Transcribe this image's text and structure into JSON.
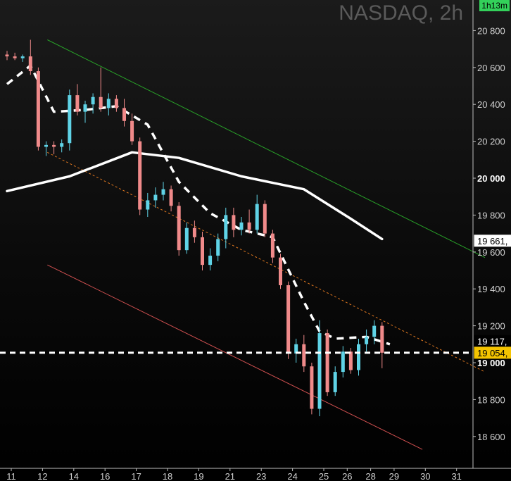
{
  "window": {
    "title": "NASDAQ, 2h",
    "timer": "1h13m"
  },
  "chart_data": {
    "type": "candlestick",
    "title": "NASDAQ, 2h",
    "ylim": [
      18500,
      20900
    ],
    "y_ticks": [
      {
        "value": 20800,
        "label": "20 800",
        "bold": false
      },
      {
        "value": 20600,
        "label": "20 600",
        "bold": false
      },
      {
        "value": 20400,
        "label": "20 400",
        "bold": false
      },
      {
        "value": 20200,
        "label": "20 200",
        "bold": false
      },
      {
        "value": 20000,
        "label": "20 000",
        "bold": true
      },
      {
        "value": 19800,
        "label": "19 800",
        "bold": false
      },
      {
        "value": 19600,
        "label": "19 600",
        "bold": false
      },
      {
        "value": 19400,
        "label": "19 400",
        "bold": false
      },
      {
        "value": 19200,
        "label": "19 200",
        "bold": false
      },
      {
        "value": 19000,
        "label": "19 000",
        "bold": true
      },
      {
        "value": 18800,
        "label": "18 800",
        "bold": false
      },
      {
        "value": 18600,
        "label": "18 600",
        "bold": false
      }
    ],
    "x_ticks": [
      "11",
      "12",
      "14",
      "16",
      "17",
      "18",
      "19",
      "21",
      "23",
      "24",
      "25",
      "26",
      "28",
      "29",
      "30",
      "31"
    ],
    "x_tick_index": [
      0,
      4,
      8,
      12,
      16,
      20,
      24,
      28,
      32,
      36,
      40,
      43,
      46,
      49,
      53,
      57
    ],
    "price_labels": [
      {
        "value": 19661,
        "label": "19 661,",
        "color": "#ffffff",
        "text_color": "#000000"
      },
      {
        "value": 19117,
        "label": "19 117,",
        "color": "#000000",
        "text_color": "#ffffff"
      },
      {
        "value": 19054,
        "label": "19 054,",
        "color": "#f5c400",
        "text_color": "#000000"
      }
    ],
    "horizontal_line": 19054,
    "series": [
      {
        "kind": "ohlc",
        "up_color": "#5fd3e6",
        "down_color": "#f08a8a",
        "bars": [
          [
            20670,
            20690,
            20640,
            20660
          ],
          [
            20660,
            20680,
            20640,
            20650
          ],
          [
            20650,
            20670,
            20630,
            20660
          ],
          [
            20660,
            20750,
            20560,
            20580
          ],
          [
            20580,
            20600,
            20150,
            20170
          ],
          [
            20170,
            20200,
            20120,
            20180
          ],
          [
            20180,
            20200,
            20130,
            20170
          ],
          [
            20170,
            20210,
            20140,
            20190
          ],
          [
            20190,
            20480,
            20150,
            20450
          ],
          [
            20450,
            20510,
            20340,
            20360
          ],
          [
            20360,
            20420,
            20300,
            20400
          ],
          [
            20400,
            20460,
            20350,
            20440
          ],
          [
            20440,
            20600,
            20360,
            20380
          ],
          [
            20380,
            20460,
            20340,
            20430
          ],
          [
            20430,
            20450,
            20360,
            20380
          ],
          [
            20380,
            20430,
            20280,
            20310
          ],
          [
            20310,
            20350,
            20180,
            20200
          ],
          [
            20200,
            20220,
            19800,
            19830
          ],
          [
            19830,
            19920,
            19790,
            19880
          ],
          [
            19880,
            19950,
            19840,
            19910
          ],
          [
            19910,
            19980,
            19880,
            19940
          ],
          [
            19940,
            19960,
            19820,
            19850
          ],
          [
            19850,
            19870,
            19580,
            19610
          ],
          [
            19610,
            19760,
            19590,
            19730
          ],
          [
            19730,
            19770,
            19650,
            19680
          ],
          [
            19680,
            19710,
            19500,
            19530
          ],
          [
            19530,
            19620,
            19500,
            19580
          ],
          [
            19580,
            19700,
            19550,
            19670
          ],
          [
            19670,
            19840,
            19620,
            19800
          ],
          [
            19800,
            19840,
            19680,
            19720
          ],
          [
            19720,
            19790,
            19690,
            19760
          ],
          [
            19760,
            19830,
            19700,
            19720
          ],
          [
            19720,
            19910,
            19700,
            19860
          ],
          [
            19860,
            19880,
            19680,
            19700
          ],
          [
            19700,
            19720,
            19540,
            19570
          ],
          [
            19570,
            19590,
            19400,
            19420
          ],
          [
            19420,
            19440,
            19020,
            19050
          ],
          [
            19050,
            19130,
            19000,
            19100
          ],
          [
            19100,
            19150,
            18950,
            18980
          ],
          [
            18980,
            19000,
            18720,
            18750
          ],
          [
            18750,
            19230,
            18710,
            19160
          ],
          [
            19160,
            19180,
            18820,
            18840
          ],
          [
            18840,
            18980,
            18820,
            18950
          ],
          [
            18950,
            19090,
            18920,
            19060
          ],
          [
            19060,
            19080,
            18940,
            18960
          ],
          [
            18960,
            19130,
            18930,
            19100
          ],
          [
            19100,
            19180,
            19060,
            19140
          ],
          [
            19140,
            19230,
            19100,
            19200
          ],
          [
            19200,
            19220,
            18970,
            19054
          ]
        ]
      },
      {
        "kind": "line",
        "style": "solid",
        "color": "#ffffff",
        "points": [
          [
            0,
            19930
          ],
          [
            8,
            20010
          ],
          [
            16,
            20140
          ],
          [
            22,
            20110
          ],
          [
            30,
            20010
          ],
          [
            38,
            19940
          ],
          [
            44,
            19780
          ],
          [
            48,
            19670
          ]
        ]
      },
      {
        "kind": "line",
        "style": "dashed",
        "color": "#ffffff",
        "points": [
          [
            0,
            20510
          ],
          [
            3,
            20610
          ],
          [
            6,
            20360
          ],
          [
            10,
            20370
          ],
          [
            14,
            20390
          ],
          [
            18,
            20290
          ],
          [
            22,
            19980
          ],
          [
            26,
            19810
          ],
          [
            30,
            19720
          ],
          [
            34,
            19680
          ],
          [
            38,
            19330
          ],
          [
            40,
            19170
          ],
          [
            42,
            19130
          ],
          [
            46,
            19140
          ],
          [
            49,
            19100
          ]
        ]
      }
    ],
    "channels": [
      {
        "color": "#28a028",
        "style": "solid",
        "from": [
          3,
          20750
        ],
        "to": [
          59,
          19570
        ]
      },
      {
        "color": "#e07820",
        "style": "dashed",
        "from": [
          3,
          20140
        ],
        "to": [
          59,
          18950
        ]
      },
      {
        "color": "#d05050",
        "style": "solid",
        "from": [
          3,
          19530
        ],
        "to": [
          51,
          18530
        ]
      }
    ]
  }
}
